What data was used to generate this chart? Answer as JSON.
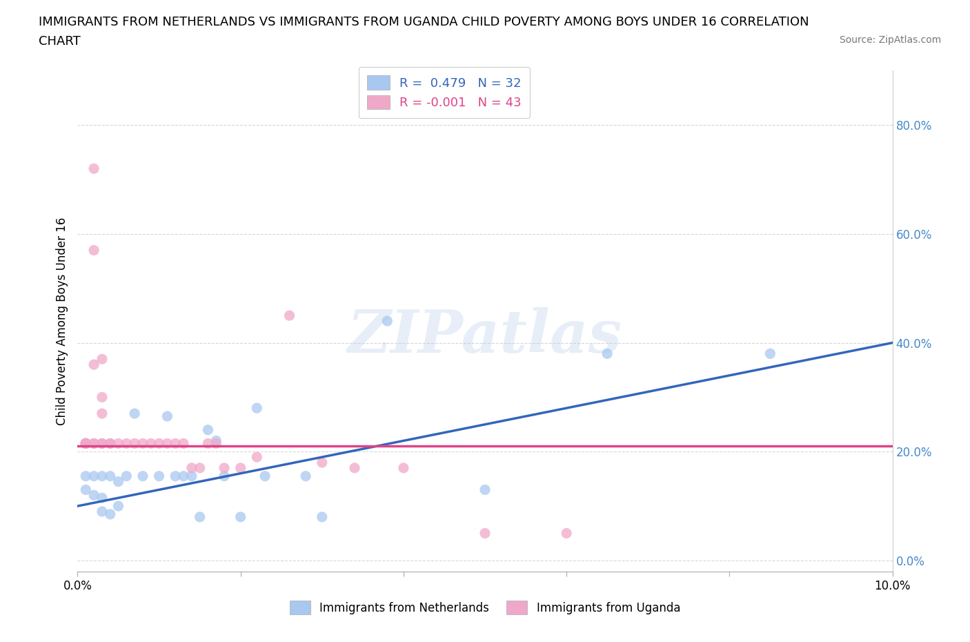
{
  "title_line1": "IMMIGRANTS FROM NETHERLANDS VS IMMIGRANTS FROM UGANDA CHILD POVERTY AMONG BOYS UNDER 16 CORRELATION",
  "title_line2": "CHART",
  "source": "Source: ZipAtlas.com",
  "ylabel": "Child Poverty Among Boys Under 16",
  "xlim": [
    0.0,
    0.1
  ],
  "ylim": [
    -0.02,
    0.9
  ],
  "yticks": [
    0.0,
    0.2,
    0.4,
    0.6,
    0.8
  ],
  "ytick_labels": [
    "0.0%",
    "20.0%",
    "40.0%",
    "60.0%",
    "80.0%"
  ],
  "r_netherlands": 0.479,
  "n_netherlands": 32,
  "r_uganda": -0.001,
  "n_uganda": 43,
  "color_netherlands": "#a8c8f0",
  "color_uganda": "#f0a8c8",
  "line_color_netherlands": "#3366bb",
  "line_color_uganda": "#dd4488",
  "watermark": "ZIPatlas",
  "nl_line": [
    [
      0.0,
      0.1
    ],
    [
      0.1,
      0.4
    ]
  ],
  "ug_line": [
    [
      0.0,
      0.21
    ],
    [
      0.1,
      0.21
    ]
  ],
  "netherlands_points": [
    [
      0.001,
      0.155
    ],
    [
      0.001,
      0.13
    ],
    [
      0.002,
      0.12
    ],
    [
      0.002,
      0.155
    ],
    [
      0.003,
      0.115
    ],
    [
      0.003,
      0.09
    ],
    [
      0.003,
      0.155
    ],
    [
      0.004,
      0.155
    ],
    [
      0.004,
      0.085
    ],
    [
      0.005,
      0.145
    ],
    [
      0.005,
      0.1
    ],
    [
      0.006,
      0.155
    ],
    [
      0.007,
      0.27
    ],
    [
      0.008,
      0.155
    ],
    [
      0.01,
      0.155
    ],
    [
      0.011,
      0.265
    ],
    [
      0.012,
      0.155
    ],
    [
      0.013,
      0.155
    ],
    [
      0.014,
      0.155
    ],
    [
      0.015,
      0.08
    ],
    [
      0.016,
      0.24
    ],
    [
      0.017,
      0.22
    ],
    [
      0.018,
      0.155
    ],
    [
      0.02,
      0.08
    ],
    [
      0.022,
      0.28
    ],
    [
      0.023,
      0.155
    ],
    [
      0.028,
      0.155
    ],
    [
      0.03,
      0.08
    ],
    [
      0.038,
      0.44
    ],
    [
      0.05,
      0.13
    ],
    [
      0.065,
      0.38
    ],
    [
      0.085,
      0.38
    ]
  ],
  "uganda_points": [
    [
      0.001,
      0.215
    ],
    [
      0.001,
      0.215
    ],
    [
      0.001,
      0.215
    ],
    [
      0.001,
      0.215
    ],
    [
      0.001,
      0.215
    ],
    [
      0.001,
      0.215
    ],
    [
      0.001,
      0.215
    ],
    [
      0.001,
      0.215
    ],
    [
      0.001,
      0.215
    ],
    [
      0.002,
      0.72
    ],
    [
      0.002,
      0.57
    ],
    [
      0.002,
      0.36
    ],
    [
      0.002,
      0.215
    ],
    [
      0.002,
      0.215
    ],
    [
      0.003,
      0.37
    ],
    [
      0.003,
      0.3
    ],
    [
      0.003,
      0.27
    ],
    [
      0.003,
      0.215
    ],
    [
      0.003,
      0.215
    ],
    [
      0.004,
      0.215
    ],
    [
      0.004,
      0.215
    ],
    [
      0.005,
      0.215
    ],
    [
      0.006,
      0.215
    ],
    [
      0.007,
      0.215
    ],
    [
      0.008,
      0.215
    ],
    [
      0.009,
      0.215
    ],
    [
      0.01,
      0.215
    ],
    [
      0.011,
      0.215
    ],
    [
      0.012,
      0.215
    ],
    [
      0.013,
      0.215
    ],
    [
      0.014,
      0.17
    ],
    [
      0.015,
      0.17
    ],
    [
      0.016,
      0.215
    ],
    [
      0.017,
      0.215
    ],
    [
      0.018,
      0.17
    ],
    [
      0.02,
      0.17
    ],
    [
      0.022,
      0.19
    ],
    [
      0.026,
      0.45
    ],
    [
      0.03,
      0.18
    ],
    [
      0.034,
      0.17
    ],
    [
      0.04,
      0.17
    ],
    [
      0.05,
      0.05
    ],
    [
      0.06,
      0.05
    ]
  ]
}
